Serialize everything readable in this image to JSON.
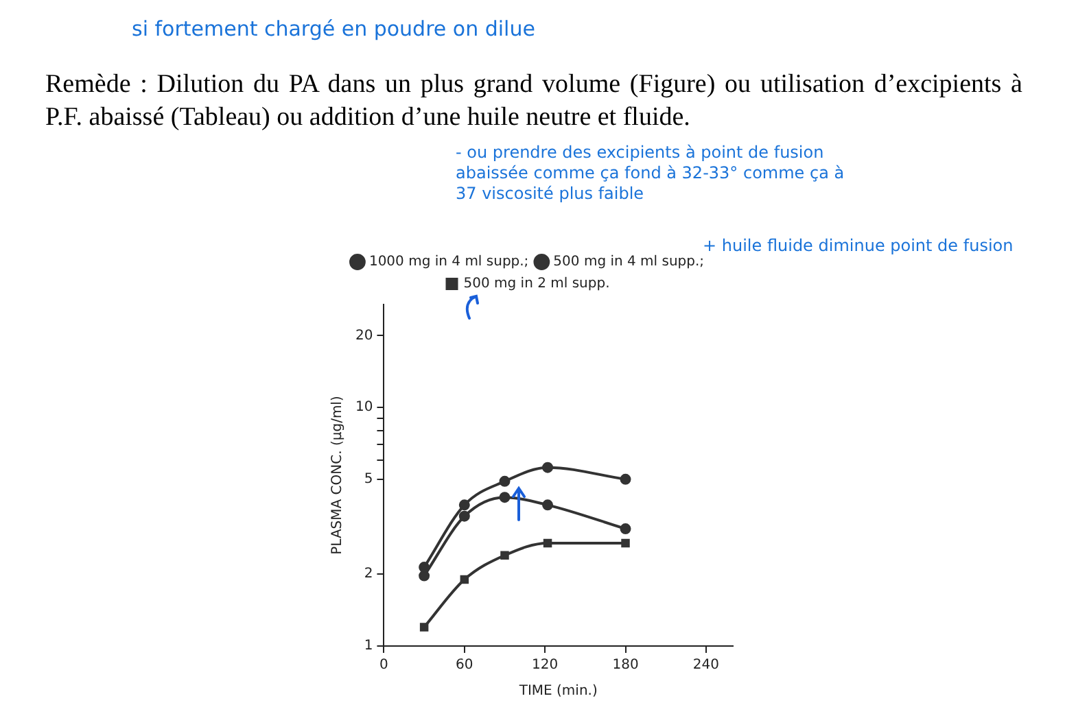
{
  "chart_data": {
    "type": "line",
    "xlabel": "TIME (min.)",
    "ylabel": "PLASMA CONC. (µg/ml)",
    "annotations": [
      "si fortement chargé en poudre on dilue",
      "Remède : Dilution du PA dans un plus grand volume (Figure) ou utilisation d’excipients à P.F. abaissé (Tableau) ou addition d’une huile neutre et fluide.",
      "- ou prendre des excipients à point de fusion abaissée comme ça fond à 32-33° comme ça à 37 viscosité plus faible",
      "+ huile fluide diminue point de fusion"
    ],
    "x": [
      30,
      60,
      90,
      122,
      180
    ],
    "series": [
      {
        "name": "1000 mg in 4 ml supp.;",
        "color": "#333333",
        "marker": "circle",
        "values": [
          2.14,
          3.9,
          4.9,
          5.6,
          5.0
        ]
      },
      {
        "name": "500 mg in 4 ml supp.;",
        "color": "#333333",
        "marker": "circle",
        "values": [
          1.97,
          3.5,
          4.2,
          3.9,
          3.1
        ]
      },
      {
        "name": "500 mg in 2 ml supp.",
        "color": "#333333",
        "marker": "square",
        "values": [
          1.2,
          1.9,
          2.4,
          2.7,
          2.7
        ]
      }
    ],
    "xlim": [
      0,
      260
    ],
    "xticks": [
      0,
      60,
      120,
      180,
      240
    ],
    "ylim": [
      1,
      27
    ],
    "yticks": [
      1,
      2,
      5,
      {
        "value": 6,
        "label": null
      },
      {
        "value": 7,
        "label": null
      },
      {
        "value": 8,
        "label": null
      },
      {
        "value": 9,
        "label": null
      },
      10,
      20
    ],
    "log": "y",
    "grid": false,
    "legend": "top",
    "line_style": "solid"
  }
}
